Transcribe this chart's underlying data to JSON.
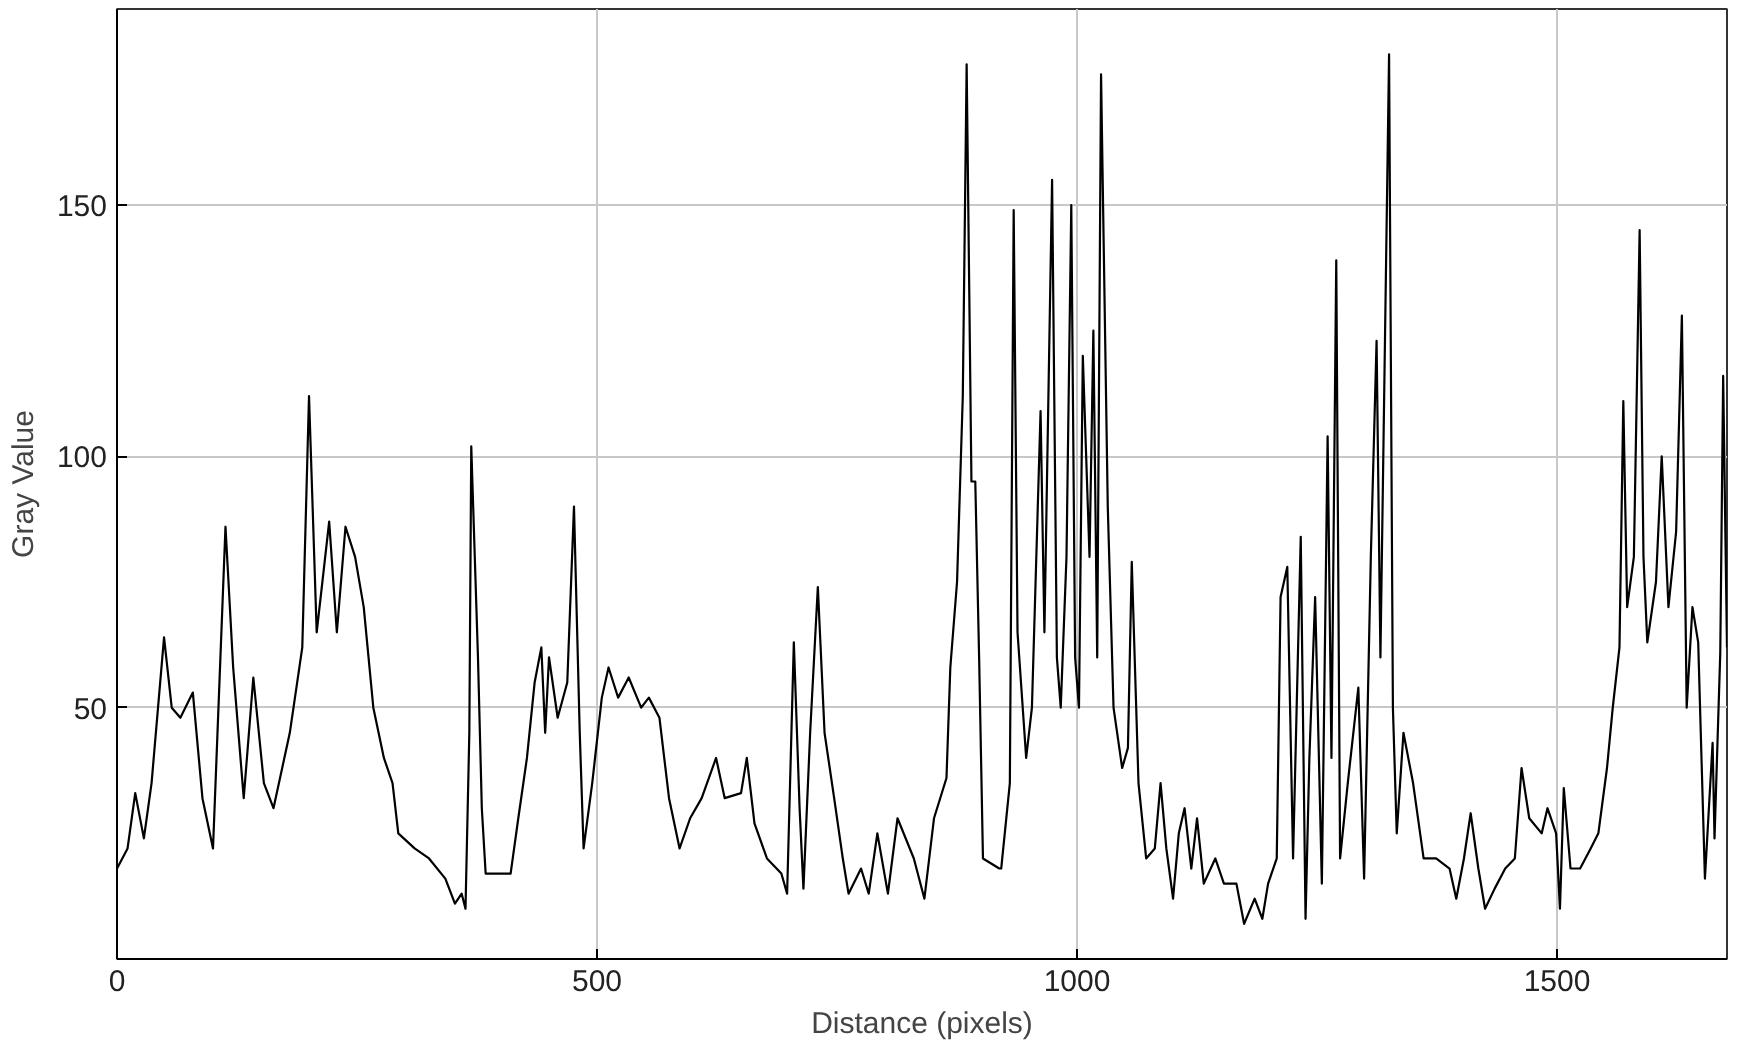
{
  "chart_data": {
    "type": "line",
    "xlabel": "Distance (pixels)",
    "ylabel": "Gray Value",
    "xlim": [
      0,
      1677
    ],
    "ylim": [
      0,
      189
    ],
    "xticks": [
      0,
      500,
      1000,
      1500
    ],
    "yticks": [
      50,
      100,
      150
    ],
    "grid": true,
    "marker": "none",
    "line_style": "solid",
    "series": [
      {
        "color": "#000000",
        "x": [
          0,
          11,
          19,
          28,
          36,
          49,
          57,
          66,
          79,
          89,
          100,
          113,
          121,
          132,
          142,
          153,
          163,
          180,
          193,
          200,
          208,
          221,
          229,
          238,
          248,
          257,
          267,
          278,
          287,
          293,
          310,
          325,
          342,
          352,
          359,
          363,
          367,
          369,
          376,
          380,
          384,
          410,
          418,
          427,
          435,
          442,
          446,
          450,
          459,
          469,
          476,
          482,
          486,
          495,
          505,
          512,
          522,
          533,
          546,
          554,
          565,
          575,
          586,
          597,
          609,
          624,
          633,
          650,
          656,
          664,
          677,
          692,
          698,
          705,
          711,
          715,
          722,
          730,
          737,
          747,
          756,
          762,
          775,
          783,
          792,
          803,
          813,
          830,
          841,
          851,
          864,
          868,
          875,
          881,
          885,
          890,
          894,
          898,
          902,
          919,
          921,
          930,
          934,
          938,
          947,
          953,
          962,
          966,
          974,
          979,
          983,
          989,
          994,
          998,
          1002,
          1006,
          1013,
          1017,
          1021,
          1025,
          1032,
          1038,
          1047,
          1053,
          1057,
          1064,
          1072,
          1081,
          1087,
          1093,
          1100,
          1106,
          1112,
          1119,
          1125,
          1132,
          1144,
          1153,
          1166,
          1174,
          1185,
          1193,
          1199,
          1208,
          1212,
          1219,
          1225,
          1233,
          1238,
          1242,
          1248,
          1255,
          1261,
          1265,
          1270,
          1274,
          1282,
          1293,
          1299,
          1306,
          1312,
          1316,
          1325,
          1329,
          1333,
          1340,
          1350,
          1361,
          1374,
          1388,
          1395,
          1403,
          1410,
          1418,
          1425,
          1435,
          1446,
          1456,
          1463,
          1471,
          1484,
          1490,
          1499,
          1503,
          1507,
          1514,
          1524,
          1535,
          1543,
          1552,
          1558,
          1565,
          1569,
          1573,
          1580,
          1586,
          1590,
          1594,
          1603,
          1609,
          1616,
          1624,
          1630,
          1635,
          1641,
          1647,
          1654,
          1662,
          1664,
          1670,
          1673,
          1677
        ],
        "values": [
          18,
          22,
          33,
          24,
          35,
          64,
          50,
          48,
          53,
          32,
          22,
          86,
          58,
          32,
          56,
          35,
          30,
          45,
          62,
          112,
          65,
          87,
          65,
          86,
          80,
          70,
          50,
          40,
          35,
          25,
          22,
          20,
          16,
          11,
          13,
          10,
          45,
          102,
          60,
          30,
          17,
          17,
          28,
          40,
          55,
          62,
          45,
          60,
          48,
          55,
          90,
          45,
          22,
          35,
          52,
          58,
          52,
          56,
          50,
          52,
          48,
          32,
          22,
          28,
          32,
          40,
          32,
          33,
          40,
          27,
          20,
          17,
          13,
          63,
          30,
          14,
          45,
          74,
          45,
          32,
          20,
          13,
          18,
          13,
          25,
          13,
          28,
          20,
          12,
          28,
          36,
          58,
          75,
          112,
          178,
          95,
          95,
          60,
          20,
          18,
          18,
          35,
          149,
          65,
          40,
          50,
          109,
          65,
          155,
          60,
          50,
          80,
          150,
          60,
          50,
          120,
          80,
          125,
          60,
          176,
          90,
          50,
          38,
          42,
          79,
          35,
          20,
          22,
          35,
          22,
          12,
          25,
          30,
          18,
          28,
          15,
          20,
          15,
          15,
          7,
          12,
          8,
          15,
          20,
          72,
          78,
          20,
          84,
          8,
          40,
          72,
          15,
          104,
          40,
          139,
          20,
          35,
          54,
          16,
          80,
          123,
          60,
          180,
          50,
          25,
          45,
          35,
          20,
          20,
          18,
          12,
          20,
          29,
          18,
          10,
          14,
          18,
          20,
          38,
          28,
          25,
          30,
          25,
          10,
          34,
          18,
          18,
          22,
          25,
          38,
          50,
          62,
          111,
          70,
          80,
          145,
          80,
          63,
          75,
          100,
          70,
          85,
          128,
          50,
          70,
          63,
          16,
          43,
          24,
          61,
          116,
          62
        ]
      }
    ]
  }
}
